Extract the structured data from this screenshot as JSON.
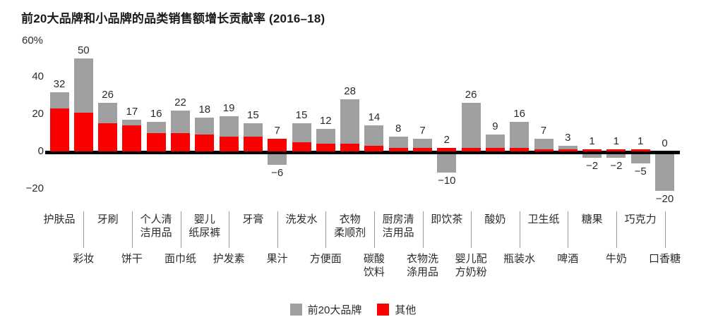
{
  "chart_data": {
    "type": "bar",
    "stacked": true,
    "title": "前20大品牌和小品牌的品类销售额增长贡献率 (2016–18)",
    "y_axis": {
      "top_label": "60%",
      "unit": "%",
      "ylim": [
        -25,
        60
      ],
      "grid": false,
      "ticks": [
        {
          "label": "40",
          "value": 40
        },
        {
          "label": "20",
          "value": 20
        },
        {
          "label": "0",
          "value": 0
        },
        {
          "label": "−20",
          "value": -20
        }
      ]
    },
    "legend": [
      {
        "name": "top20",
        "label": "前20大品牌",
        "color": "#9f9f9f"
      },
      {
        "name": "others",
        "label": "其他",
        "color": "#fa0000"
      }
    ],
    "colors": {
      "top20": "#9f9f9f",
      "others": "#fa0000",
      "axis": "#000000"
    },
    "legend_position": "bottom-center",
    "series_note": "others = red bottom segment, top20 = gray segment; negative segments are gray below axis",
    "categories": [
      {
        "name": "护肤品",
        "lines": [
          "护肤品"
        ],
        "row": 1,
        "others": 23,
        "top20": 9,
        "label": "32"
      },
      {
        "name": "彩妆",
        "lines": [
          "彩妆"
        ],
        "row": 2,
        "others": 21,
        "top20": 29,
        "label": "50"
      },
      {
        "name": "牙刷",
        "lines": [
          "牙刷"
        ],
        "row": 1,
        "others": 15,
        "top20": 11,
        "label": "26"
      },
      {
        "name": "饼干",
        "lines": [
          "饼干"
        ],
        "row": 2,
        "others": 14,
        "top20": 3,
        "label": "17"
      },
      {
        "name": "个人清洁用品",
        "lines": [
          "个人清",
          "洁用品"
        ],
        "row": 1,
        "others": 10,
        "top20": 6,
        "label": "16"
      },
      {
        "name": "面巾纸",
        "lines": [
          "面巾纸"
        ],
        "row": 2,
        "others": 10,
        "top20": 12,
        "label": "22"
      },
      {
        "name": "婴儿纸尿裤",
        "lines": [
          "婴儿",
          "纸尿裤"
        ],
        "row": 1,
        "others": 9,
        "top20": 9,
        "label": "18"
      },
      {
        "name": "护发素",
        "lines": [
          "护发素"
        ],
        "row": 2,
        "others": 8,
        "top20": 11,
        "label": "19"
      },
      {
        "name": "牙膏",
        "lines": [
          "牙膏"
        ],
        "row": 1,
        "others": 8,
        "top20": 7,
        "label": "15"
      },
      {
        "name": "果汁",
        "lines": [
          "果汁"
        ],
        "row": 2,
        "others": 7,
        "top20": -6,
        "label": "7",
        "neg_label": "−6"
      },
      {
        "name": "洗发水",
        "lines": [
          "洗发水"
        ],
        "row": 1,
        "others": 5,
        "top20": 10,
        "label": "15"
      },
      {
        "name": "方便面",
        "lines": [
          "方便面"
        ],
        "row": 2,
        "others": 4,
        "top20": 8,
        "label": "12"
      },
      {
        "name": "衣物柔顺剂",
        "lines": [
          "衣物",
          "柔顺剂"
        ],
        "row": 1,
        "others": 4,
        "top20": 24,
        "label": "28"
      },
      {
        "name": "碳酸饮料",
        "lines": [
          "碳酸",
          "饮料"
        ],
        "row": 2,
        "others": 3,
        "top20": 11,
        "label": "14"
      },
      {
        "name": "厨房清洁用品",
        "lines": [
          "厨房清",
          "洁用品"
        ],
        "row": 1,
        "others": 2,
        "top20": 6,
        "label": "8"
      },
      {
        "name": "衣物洗涤用品",
        "lines": [
          "衣物洗",
          "涤用品"
        ],
        "row": 2,
        "others": 2,
        "top20": 5,
        "label": "7"
      },
      {
        "name": "即饮茶",
        "lines": [
          "即饮茶"
        ],
        "row": 1,
        "others": 2,
        "top20": -10,
        "label": "2",
        "neg_label": "−10"
      },
      {
        "name": "婴儿配方奶粉",
        "lines": [
          "婴儿配",
          "方奶粉"
        ],
        "row": 2,
        "others": 2,
        "top20": 24,
        "label": "26"
      },
      {
        "name": "酸奶",
        "lines": [
          "酸奶"
        ],
        "row": 1,
        "others": 2,
        "top20": 7,
        "label": "9"
      },
      {
        "name": "瓶装水",
        "lines": [
          "瓶装水"
        ],
        "row": 2,
        "others": 2,
        "top20": 14,
        "label": "16"
      },
      {
        "name": "卫生纸",
        "lines": [
          "卫生纸"
        ],
        "row": 1,
        "others": 1,
        "top20": 6,
        "label": "7"
      },
      {
        "name": "啤酒",
        "lines": [
          "啤酒"
        ],
        "row": 2,
        "others": 1,
        "top20": 2,
        "label": "3"
      },
      {
        "name": "糖果",
        "lines": [
          "糖果"
        ],
        "row": 1,
        "others": 1,
        "top20": -2,
        "label": "1",
        "neg_label": "−2"
      },
      {
        "name": "牛奶",
        "lines": [
          "牛奶"
        ],
        "row": 2,
        "others": 1,
        "top20": -2,
        "label": "1",
        "neg_label": "−2"
      },
      {
        "name": "巧克力",
        "lines": [
          "巧克力"
        ],
        "row": 1,
        "others": 1,
        "top20": -5,
        "label": "1",
        "neg_label": "−5"
      },
      {
        "name": "口香糖",
        "lines": [
          "口香糖"
        ],
        "row": 2,
        "others": 0,
        "top20": -20,
        "label": "0",
        "neg_label": "−20"
      }
    ]
  }
}
